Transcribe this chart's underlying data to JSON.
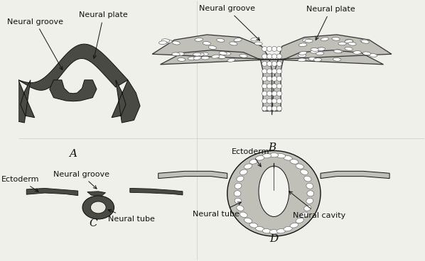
{
  "bg_color": "#f0f0eb",
  "fig_width": 5.98,
  "fig_height": 3.68,
  "dpi": 100,
  "dark_gray": "#111111",
  "tissue_dark": "#4a4a45",
  "tissue_light": "#c0c0b8",
  "tissue_mid": "#888880",
  "white": "#ffffff",
  "cell_edge": "#555555",
  "label_A": "A",
  "label_B": "B",
  "label_C": "C",
  "label_D": "D",
  "ann_fontsize": 8,
  "letter_fontsize": 11
}
